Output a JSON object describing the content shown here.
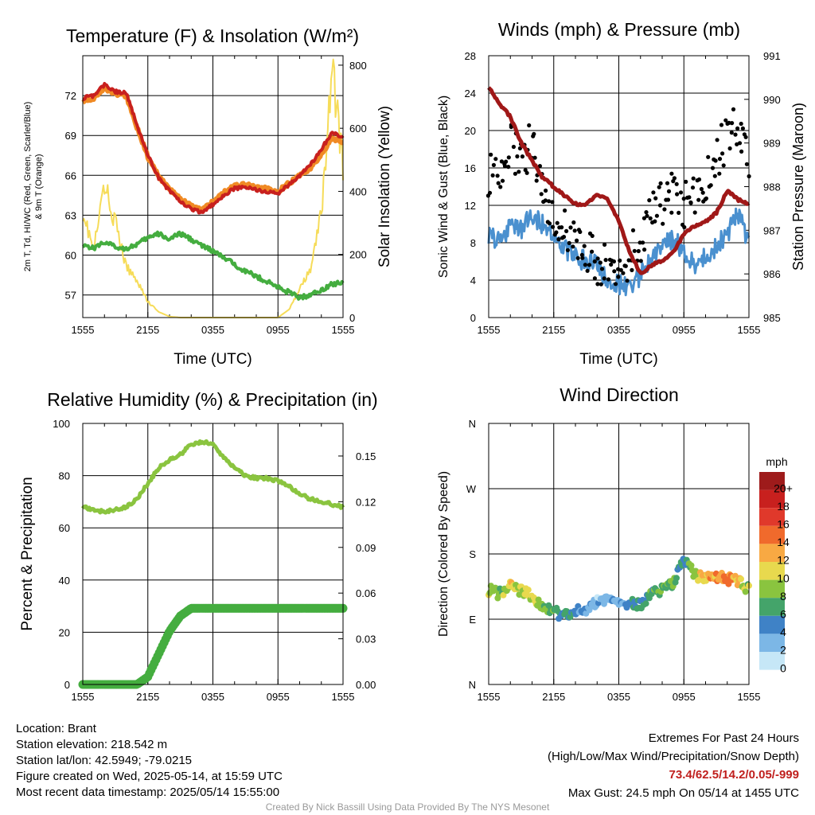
{
  "footer": {
    "location": "Location: Brant",
    "elevation": "Station elevation: 218.542 m",
    "latlon": "Station lat/lon: 42.5949; -79.0215",
    "created": "Figure created on Wed, 2025-05-14, at 15:59 UTC",
    "recent": "Most recent data timestamp: 2025/05/14 15:55:00",
    "extremes_title": "Extremes For Past 24 Hours",
    "extremes_legend": "(High/Low/Max Wind/Precipitation/Snow Depth)",
    "extremes_values": "73.4/62.5/14.2/0.05/-999",
    "max_gust": "Max Gust: 24.5 mph On 05/14 at 1455 UTC",
    "credit": "Created By Nick Bassill Using Data Provided By The NYS Mesonet"
  },
  "chart_data": [
    {
      "id": "temperature",
      "type": "line",
      "title": "Temperature (F) & Insolation (W/m²)",
      "xlabel": "Time (UTC)",
      "ylabel_left": "2m T, Td, HI/WC (Red, Green, Scarlet/Blue) & 9m T (Orange)",
      "ylabel_right": "Solar Insolation (Yellow)",
      "x_ticks": [
        "1555",
        "2155",
        "0355",
        "0955",
        "1555"
      ],
      "x": [
        0,
        1,
        2,
        3,
        4,
        5,
        6,
        7,
        8,
        9,
        10,
        11,
        12,
        13,
        14,
        15,
        16,
        17,
        18,
        19,
        20,
        21,
        22,
        23,
        24
      ],
      "ylim_left": [
        55.3,
        75
      ],
      "yticks_left": [
        57,
        60,
        63,
        66,
        69,
        72
      ],
      "ylim_right": [
        0,
        830
      ],
      "yticks_right": [
        0,
        200,
        400,
        600,
        800
      ],
      "series": [
        {
          "name": "2m T",
          "color": "#c8201e",
          "axis": "left",
          "values": [
            71.8,
            72.0,
            72.8,
            72.3,
            72.2,
            69.8,
            67.5,
            65.8,
            64.8,
            64.0,
            63.5,
            63.2,
            63.8,
            64.5,
            65.0,
            65.1,
            64.9,
            64.8,
            64.6,
            65.3,
            66.0,
            66.8,
            68.0,
            69.2,
            68.8
          ]
        },
        {
          "name": "9m T",
          "color": "#f08a24",
          "axis": "left",
          "values": [
            71.6,
            71.8,
            72.6,
            72.1,
            72.0,
            69.6,
            67.4,
            65.9,
            65.0,
            64.2,
            63.7,
            63.4,
            64.0,
            64.7,
            65.2,
            65.3,
            65.1,
            65.0,
            64.8,
            65.4,
            66.0,
            66.5,
            67.6,
            68.8,
            68.5
          ]
        },
        {
          "name": "2m Td",
          "color": "#44ad3f",
          "axis": "left",
          "values": [
            60.8,
            60.5,
            61.0,
            60.6,
            60.5,
            60.8,
            61.3,
            61.6,
            61.2,
            61.6,
            61.2,
            60.7,
            60.3,
            59.8,
            59.3,
            58.8,
            58.4,
            58.0,
            57.6,
            57.2,
            56.8,
            57.0,
            57.4,
            57.8,
            58.0
          ]
        },
        {
          "name": "Solar Insolation",
          "color": "#f6dc59",
          "axis": "right",
          "values": [
            340,
            210,
            420,
            300,
            160,
            120,
            50,
            18,
            3,
            0,
            0,
            0,
            0,
            0,
            0,
            0,
            0,
            0,
            0,
            25,
            90,
            150,
            330,
            790,
            480
          ]
        }
      ]
    },
    {
      "id": "winds",
      "type": "line",
      "title": "Winds (mph) & Pressure (mb)",
      "xlabel": "Time (UTC)",
      "ylabel_left": "Sonic Wind & Gust (Blue, Black)",
      "ylabel_right": "Station Pressure (Maroon)",
      "x_ticks": [
        "1555",
        "2155",
        "0355",
        "0955",
        "1555"
      ],
      "x": [
        0,
        1,
        2,
        3,
        4,
        5,
        6,
        7,
        8,
        9,
        10,
        11,
        12,
        13,
        14,
        15,
        16,
        17,
        18,
        19,
        20,
        21,
        22,
        23,
        24
      ],
      "ylim_left": [
        0,
        28
      ],
      "yticks_left": [
        0,
        4,
        8,
        12,
        16,
        20,
        24,
        28
      ],
      "ylim_right": [
        985,
        991
      ],
      "yticks_right": [
        985,
        986,
        987,
        988,
        989,
        990,
        991
      ],
      "series": [
        {
          "name": "Sonic Wind",
          "color": "#4a90cf",
          "axis": "left",
          "values": [
            9.0,
            8.0,
            10.0,
            9.5,
            11.0,
            10.0,
            8.5,
            7.5,
            6.5,
            6.0,
            5.5,
            4.0,
            3.5,
            3.5,
            4.5,
            6.0,
            7.5,
            8.5,
            7.0,
            5.5,
            6.5,
            7.5,
            9.0,
            11.0,
            8.0
          ]
        },
        {
          "name": "Gust",
          "color": "#000000",
          "axis": "left",
          "type": "scatter",
          "values": [
            15.5,
            14.0,
            18.5,
            16.5,
            19.0,
            14.0,
            10.5,
            9.5,
            8.0,
            7.5,
            6.0,
            5.5,
            6.0,
            6.5,
            8.5,
            11.0,
            12.5,
            13.0,
            12.0,
            12.5,
            14.5,
            17.5,
            19.0,
            21.0,
            15.5
          ]
        },
        {
          "name": "Station Pressure",
          "color": "#a01818",
          "axis": "right",
          "values": [
            990.3,
            989.9,
            989.6,
            989.0,
            988.6,
            988.2,
            988.0,
            987.8,
            987.6,
            987.6,
            987.8,
            987.7,
            987.2,
            986.5,
            986.0,
            986.2,
            986.3,
            986.5,
            986.9,
            987.1,
            987.2,
            987.4,
            987.9,
            987.7,
            987.6
          ]
        }
      ]
    },
    {
      "id": "humidity",
      "type": "line",
      "title": "Relative Humidity (%) & Precipitation (in)",
      "ylabel_left": "Percent & Precipitation",
      "x_ticks": [
        "1555",
        "2155",
        "0355",
        "0955",
        "1555"
      ],
      "x": [
        0,
        1,
        2,
        3,
        4,
        5,
        6,
        7,
        8,
        9,
        10,
        11,
        12,
        13,
        14,
        15,
        16,
        17,
        18,
        19,
        20,
        21,
        22,
        23,
        24
      ],
      "ylim_left": [
        0,
        100
      ],
      "yticks_left": [
        0,
        20,
        40,
        60,
        80,
        100
      ],
      "ylim_right": [
        0,
        0.1714
      ],
      "yticks_right": [
        "0.00",
        "0.03",
        "0.06",
        "0.09",
        "0.12",
        "0.15"
      ],
      "yticks_right_values": [
        0,
        0.03,
        0.06,
        0.09,
        0.12,
        0.15
      ],
      "series": [
        {
          "name": "Relative Humidity",
          "color": "#8ac43f",
          "axis": "left",
          "values": [
            68,
            67,
            66,
            67,
            68,
            71,
            77,
            83,
            86,
            88,
            92,
            93,
            92,
            87,
            83,
            80,
            79,
            79,
            78,
            76,
            73,
            71,
            70,
            69,
            68
          ]
        },
        {
          "name": "Precipitation",
          "color": "#44ad3f",
          "axis": "right",
          "values": [
            0,
            0,
            0,
            0,
            0,
            0,
            0.005,
            0.02,
            0.035,
            0.045,
            0.05,
            0.05,
            0.05,
            0.05,
            0.05,
            0.05,
            0.05,
            0.05,
            0.05,
            0.05,
            0.05,
            0.05,
            0.05,
            0.05,
            0.05
          ]
        }
      ]
    },
    {
      "id": "direction",
      "type": "scatter",
      "title": "Wind Direction",
      "ylabel_left": "Direction (Colored By Speed)",
      "x_ticks": [
        "1555",
        "2155",
        "0355",
        "0955",
        "1555"
      ],
      "yticks_left": [
        "N",
        "E",
        "S",
        "W",
        "N"
      ],
      "ylim_left": [
        0,
        360
      ],
      "legend": {
        "unit": "mph",
        "labels": [
          "20+",
          "18",
          "16",
          "14",
          "12",
          "10",
          "8",
          "6",
          "4",
          "2",
          "0"
        ],
        "colors": [
          "#9e1b1b",
          "#c8201e",
          "#e0392b",
          "#f06a2c",
          "#f8a943",
          "#e8d94e",
          "#8ac43f",
          "#44a46a",
          "#3f82c6",
          "#7cb7e6",
          "#c6e7f7"
        ]
      },
      "x": [
        0,
        1,
        2,
        3,
        4,
        5,
        6,
        7,
        8,
        9,
        10,
        11,
        12,
        13,
        14,
        15,
        16,
        17,
        18,
        19,
        20,
        21,
        22,
        23,
        24
      ],
      "values": [
        130,
        125,
        135,
        130,
        120,
        110,
        100,
        95,
        100,
        105,
        115,
        118,
        116,
        112,
        110,
        125,
        130,
        140,
        175,
        150,
        148,
        150,
        146,
        142,
        130
      ],
      "speeds": [
        8,
        7,
        10,
        9,
        10,
        8,
        6,
        5,
        4,
        3,
        2,
        2,
        3,
        4,
        5,
        6,
        7,
        7,
        4,
        9,
        12,
        12,
        13,
        11,
        8
      ]
    }
  ]
}
